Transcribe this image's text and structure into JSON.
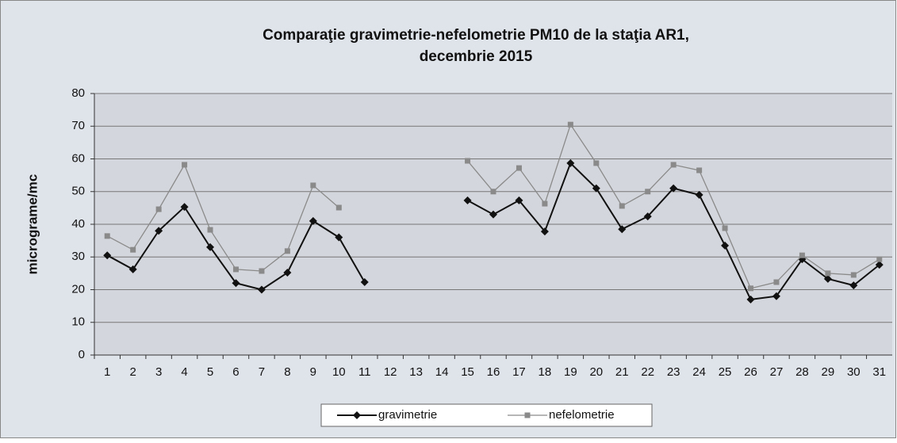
{
  "chart_data": {
    "type": "line",
    "title": [
      "Comparaţie gravimetrie-nefelometrie PM10 de la staţia AR1,",
      "decembrie 2015"
    ],
    "y_label": "micrograme/mc",
    "categories": [
      1,
      2,
      3,
      4,
      5,
      6,
      7,
      8,
      9,
      10,
      11,
      12,
      13,
      14,
      15,
      16,
      17,
      18,
      19,
      20,
      21,
      22,
      23,
      24,
      25,
      26,
      27,
      28,
      29,
      30,
      31
    ],
    "series": [
      {
        "name": "gravimetrie",
        "color": "#111111",
        "marker": "diamond",
        "values": [
          30.5,
          26.2,
          38,
          45.3,
          33,
          22,
          20,
          25.2,
          41,
          36,
          22.3,
          null,
          null,
          null,
          47.3,
          43,
          47.3,
          37.8,
          58.7,
          51,
          38.5,
          42.4,
          51,
          49,
          33.5,
          17,
          18,
          29.3,
          23.3,
          21.3,
          27.6
        ]
      },
      {
        "name": "nefelometrie",
        "color": "#8a8a8a",
        "marker": "square",
        "values": [
          36.4,
          32.2,
          44.6,
          58.2,
          38.3,
          26.2,
          25.7,
          31.8,
          51.9,
          45.1,
          null,
          null,
          null,
          null,
          59.4,
          50,
          57.2,
          46.3,
          70.5,
          58.7,
          45.6,
          50,
          58.2,
          56.5,
          38.8,
          20.4,
          22.3,
          30.5,
          25,
          24.5,
          29.3
        ]
      }
    ],
    "ylim": [
      0,
      80
    ],
    "yticks": [
      0,
      10,
      20,
      30,
      40,
      50,
      60,
      70,
      80
    ],
    "grid": true,
    "legend": "bottom"
  }
}
